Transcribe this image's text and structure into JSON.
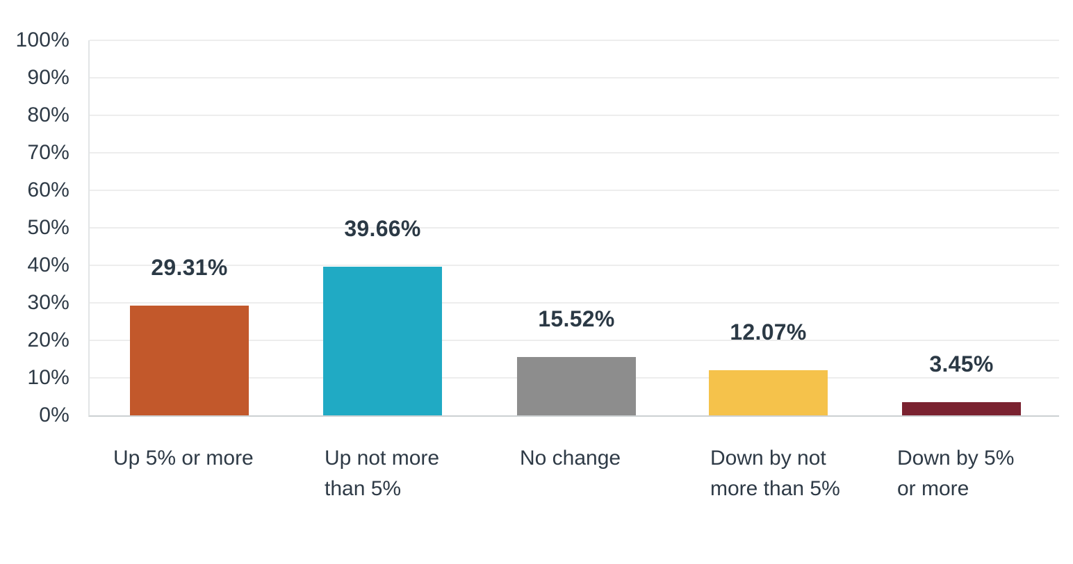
{
  "chart_data": {
    "type": "bar",
    "title": "",
    "xlabel": "",
    "ylabel": "",
    "categories": [
      "Up 5% or more",
      "Up not more\nthan 5%",
      "No change",
      "Down by not\nmore than 5%",
      "Down by 5%\nor more"
    ],
    "values": [
      29.31,
      39.66,
      15.52,
      12.07,
      3.45
    ],
    "value_labels": [
      "29.31%",
      "39.66%",
      "15.52%",
      "12.07%",
      "3.45%"
    ],
    "bar_colors": [
      "#c2582b",
      "#20aac4",
      "#8d8d8d",
      "#f5c24b",
      "#7a2230"
    ],
    "ylim": [
      0,
      100
    ],
    "yticks": [
      "100%",
      "90%",
      "80%",
      "70%",
      "60%",
      "50%",
      "40%",
      "30%",
      "20%",
      "10%",
      "0%"
    ],
    "grid": "horizontal",
    "legend": "none"
  },
  "style": {
    "background": "#ffffff",
    "text_color": "#2e3a46",
    "value_label_color": "#2b3945",
    "grid_color": "#ededed",
    "axis_line_color": "#ccd0d2"
  }
}
